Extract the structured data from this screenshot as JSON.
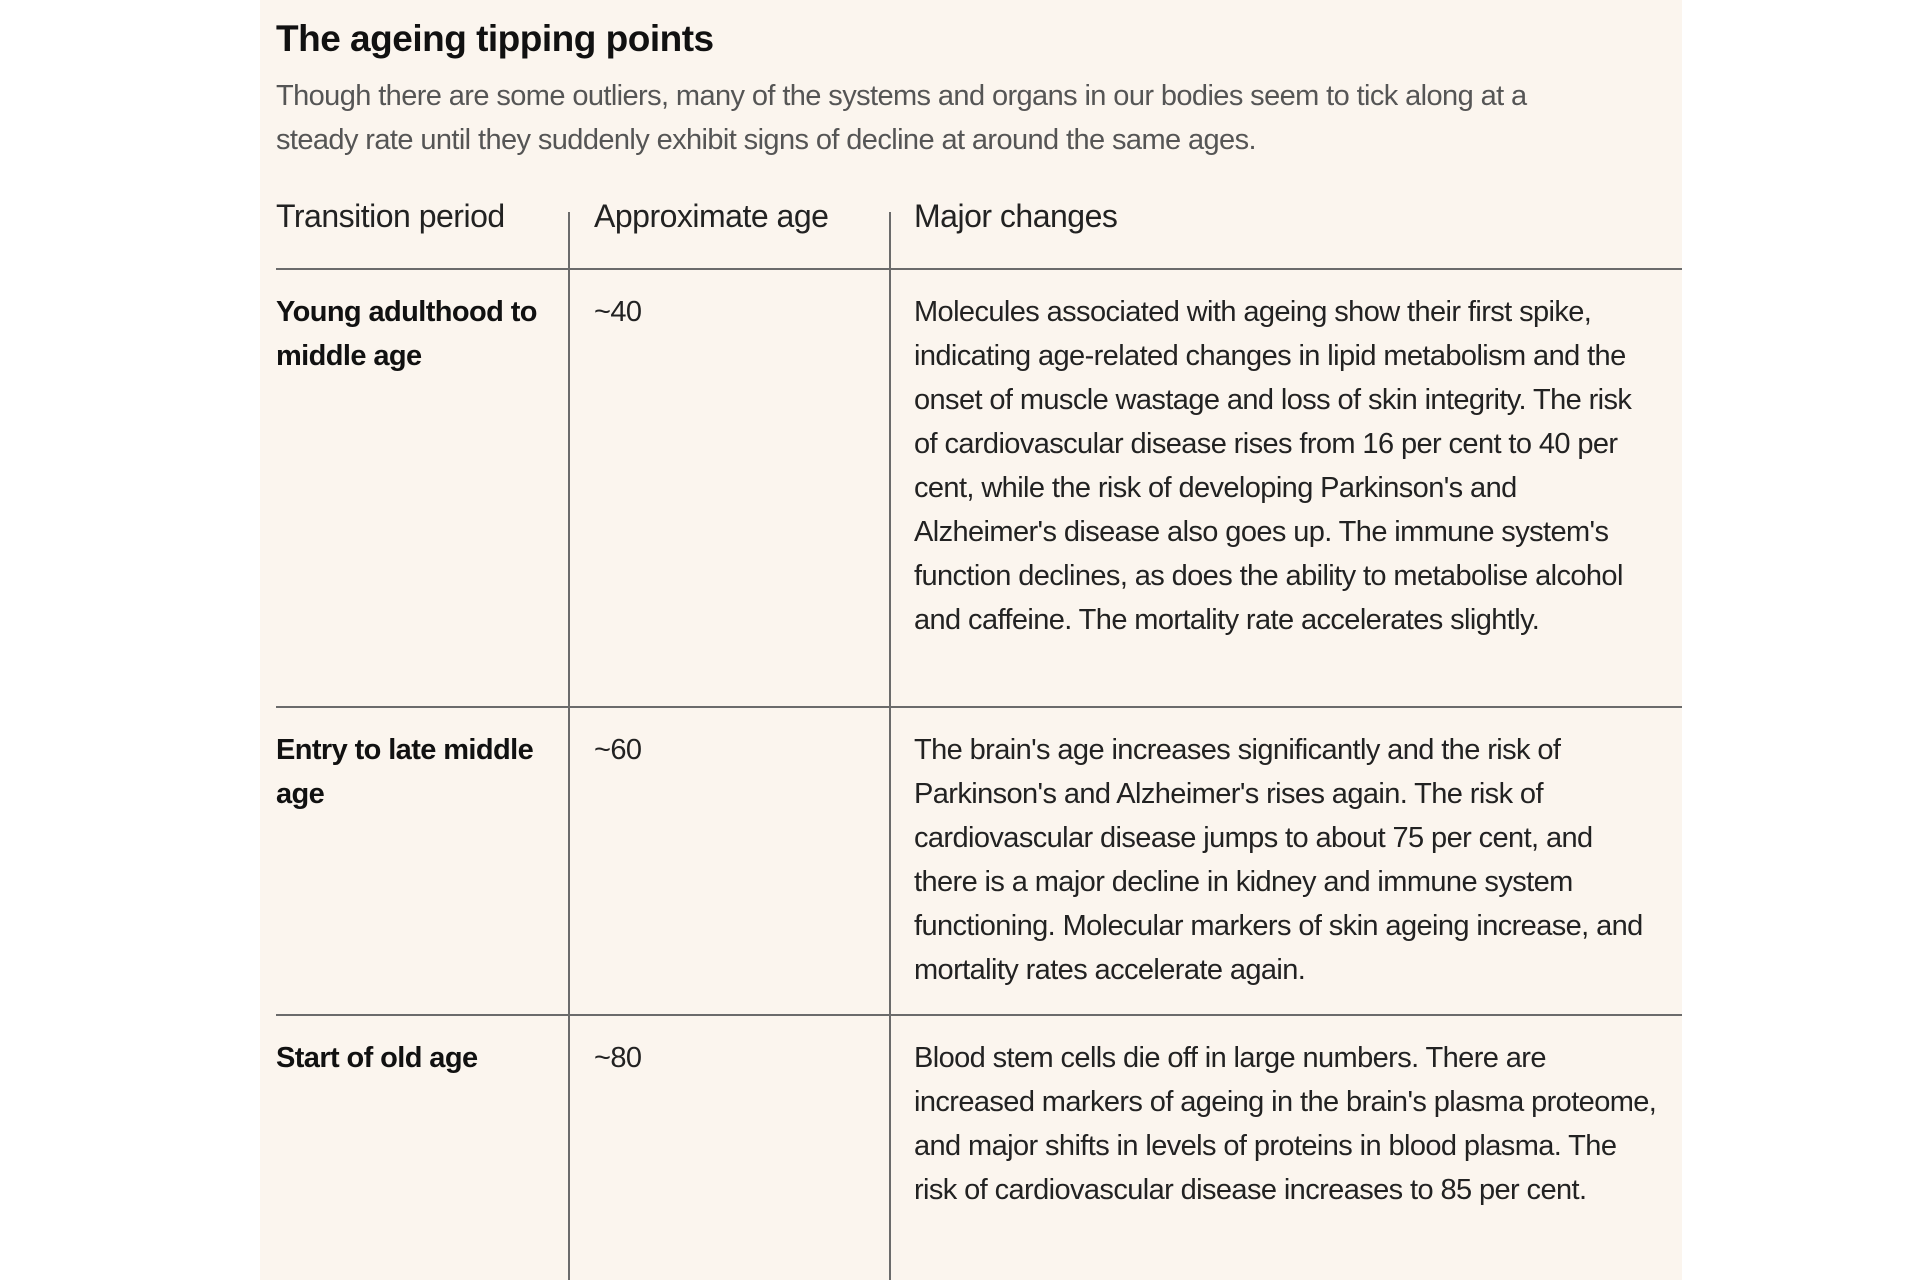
{
  "title": "The ageing tipping points",
  "subtitle": "Though there are some outliers, many of the systems and organs in our bodies seem to tick along at a steady rate until they suddenly exhibit signs of decline at around the same ages.",
  "table": {
    "headers": [
      "Transition period",
      "Approximate age",
      "Major changes"
    ],
    "rows": [
      {
        "period": "Young adulthood to middle age",
        "age": "~40",
        "changes": "Molecules associated with ageing show their first spike, indicating age-related changes in lipid metabolism and the onset of muscle wastage and loss of skin integrity. The risk of cardiovascular disease rises from 16 per cent to 40 per cent, while the risk of developing Parkinson's and Alzheimer's disease also goes up. The immune system's function declines, as does the ability to metabolise alcohol and caffeine. The mortality rate accelerates slightly."
      },
      {
        "period": "Entry to late middle age",
        "age": "~60",
        "changes": "The brain's age increases significantly and the risk of Parkinson's and Alzheimer's rises again. The risk of cardiovascular disease jumps to about 75 per cent, and there is a major decline in kidney and immune system functioning. Molecular markers of skin ageing increase, and mortality rates accelerate again."
      },
      {
        "period": "Start of old age",
        "age": "~80",
        "changes": "Blood stem cells die off in large numbers. There are increased markers of ageing in the brain's plasma proteome, and major shifts in levels of proteins in blood plasma. The risk of cardiovascular disease increases to 85 per cent."
      }
    ]
  }
}
